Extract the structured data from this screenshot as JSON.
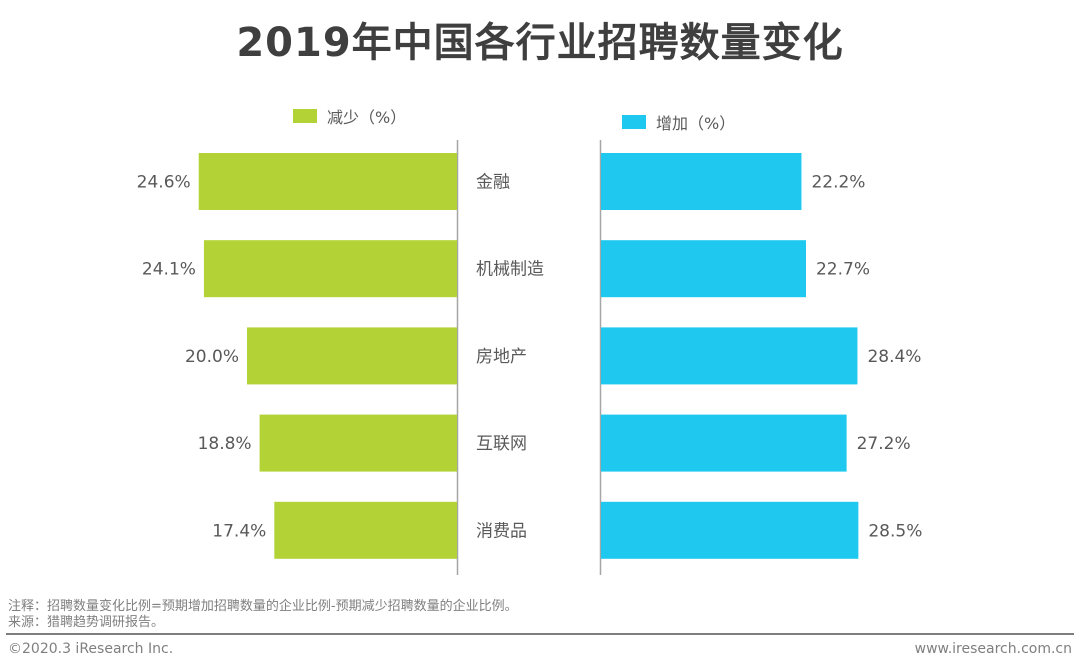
{
  "chart_data": {
    "type": "bar",
    "orientation": "horizontal-butterfly",
    "title": "2019年中国各行业招聘数量变化",
    "categories": [
      "金融",
      "机械制造",
      "房地产",
      "互联网",
      "消费品"
    ],
    "series": [
      {
        "name": "减少（%）",
        "color": "#b2d235",
        "side": "left",
        "values": [
          24.6,
          24.1,
          20.0,
          18.8,
          17.4
        ],
        "labels": [
          "24.6%",
          "24.1%",
          "20.0%",
          "18.8%",
          "17.4%"
        ]
      },
      {
        "name": "增加（%）",
        "color": "#1fc8ef",
        "side": "right",
        "values": [
          22.2,
          22.7,
          28.4,
          27.2,
          28.5
        ],
        "labels": [
          "22.2%",
          "22.7%",
          "28.4%",
          "27.2%",
          "28.5%"
        ]
      }
    ],
    "xlabel": "",
    "ylabel": "",
    "grid": false,
    "legend": "top"
  },
  "footer": {
    "note": "注释：招聘数量变化比例=预期增加招聘数量的企业比例-预期减少招聘数量的企业比例。",
    "source": "来源：猎聘趋势调研报告。",
    "copyright": "©2020.3 iResearch Inc.",
    "website": "www.iresearch.com.cn"
  }
}
